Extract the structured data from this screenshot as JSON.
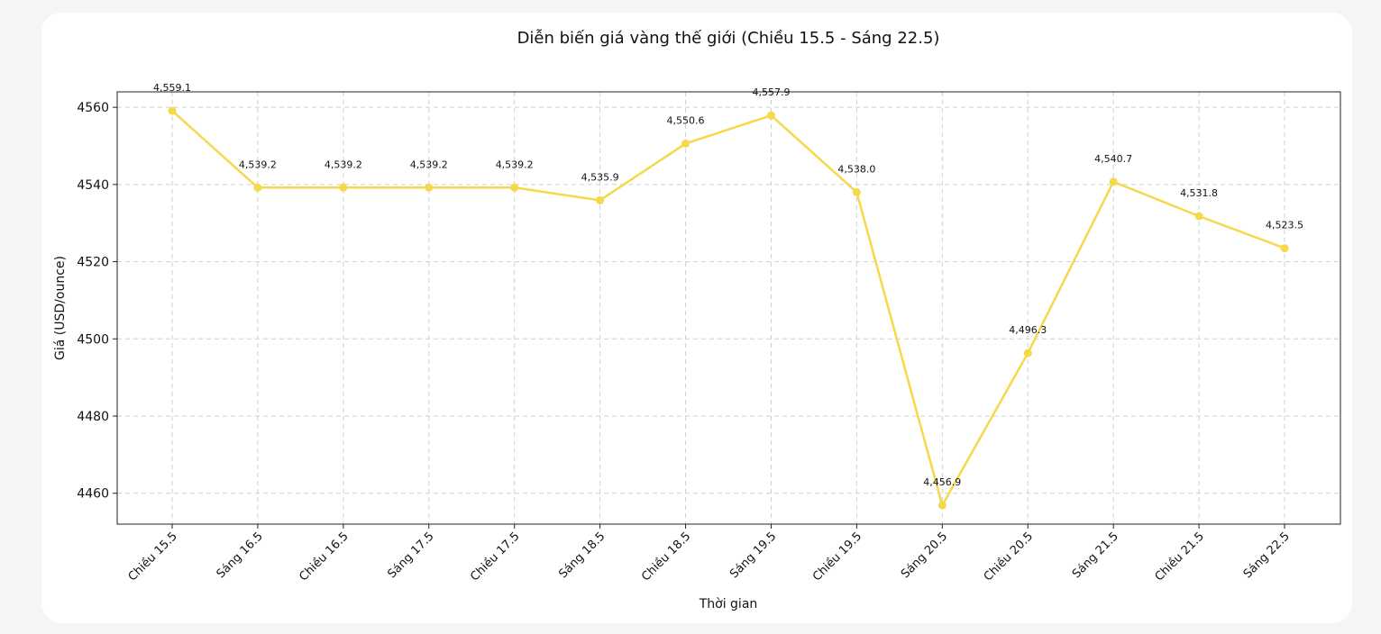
{
  "chart_data": {
    "type": "line",
    "title": "Diễn biến giá vàng thế giới (Chiều 15.5 - Sáng 22.5)",
    "xlabel": "Thời gian",
    "ylabel": "Giá (USD/ounce)",
    "categories": [
      "Chiều 15.5",
      "Sáng 16.5",
      "Chiều 16.5",
      "Sáng 17.5",
      "Chiều 17.5",
      "Sáng 18.5",
      "Chiều 18.5",
      "Sáng 19.5",
      "Chiều 19.5",
      "Sáng 20.5",
      "Chiều 20.5",
      "Sáng 21.5",
      "Chiều 21.5",
      "Sáng 22.5"
    ],
    "values": [
      4559.1,
      4539.2,
      4539.2,
      4539.2,
      4539.2,
      4535.9,
      4550.6,
      4557.9,
      4538.0,
      4456.9,
      4496.3,
      4540.7,
      4531.8,
      4523.5
    ],
    "data_labels": [
      "4,559.1",
      "4,539.2",
      "4,539.2",
      "4,539.2",
      "4,539.2",
      "4,535.9",
      "4,550.6",
      "4,557.9",
      "4,538.0",
      "4,456.9",
      "4,496.3",
      "4,540.7",
      "4,531.8",
      "4,523.5"
    ],
    "yticks": [
      4460,
      4480,
      4500,
      4520,
      4540,
      4560
    ],
    "ylim": [
      4452,
      4564
    ],
    "grid": true,
    "line_color": "#f5d94a"
  }
}
